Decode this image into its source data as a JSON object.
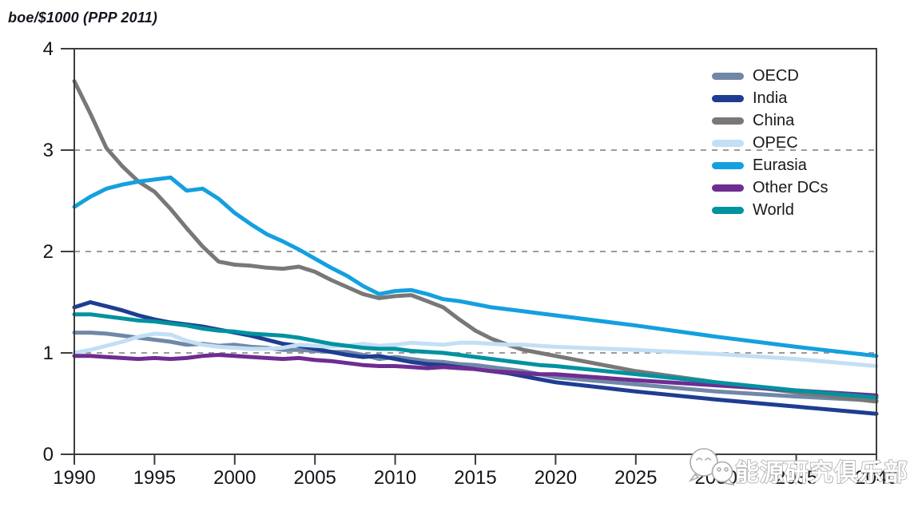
{
  "title": {
    "text": "boe/$1000 (PPP 2011)"
  },
  "chart_data": {
    "type": "line",
    "title": "boe/$1000 (PPP 2011)",
    "ylabel": "boe/$1000 (PPP 2011)",
    "xlim": [
      1990,
      2040
    ],
    "ylim": [
      0,
      4
    ],
    "x_ticks": [
      1990,
      1995,
      2000,
      2005,
      2010,
      2015,
      2020,
      2025,
      2030,
      2035,
      2040
    ],
    "y_ticks": [
      0,
      1,
      2,
      3,
      4
    ],
    "dashed_gridlines_y": [
      1,
      2,
      3
    ],
    "grid": "horizontal dashed at 1, 2, 3; solid plot frame",
    "legend_position": "top-right inside plot area",
    "x": [
      1990,
      1991,
      1992,
      1993,
      1994,
      1995,
      1996,
      1997,
      1998,
      1999,
      2000,
      2001,
      2002,
      2003,
      2004,
      2005,
      2006,
      2007,
      2008,
      2009,
      2010,
      2011,
      2012,
      2013,
      2014,
      2015,
      2016,
      2017,
      2018,
      2019,
      2020,
      2025,
      2030,
      2035,
      2040
    ],
    "series": [
      {
        "name": "OECD",
        "color": "#7088A8",
        "values": [
          1.2,
          1.2,
          1.19,
          1.17,
          1.15,
          1.13,
          1.11,
          1.08,
          1.09,
          1.07,
          1.08,
          1.06,
          1.05,
          1.03,
          1.03,
          1.02,
          1.01,
          1.01,
          0.98,
          0.94,
          0.96,
          0.94,
          0.92,
          0.91,
          0.89,
          0.88,
          0.86,
          0.84,
          0.82,
          0.79,
          0.76,
          0.69,
          0.62,
          0.57,
          0.53
        ]
      },
      {
        "name": "India",
        "color": "#1E3D92",
        "values": [
          1.45,
          1.5,
          1.46,
          1.42,
          1.37,
          1.33,
          1.3,
          1.28,
          1.26,
          1.23,
          1.2,
          1.17,
          1.13,
          1.09,
          1.07,
          1.04,
          1.01,
          0.98,
          0.96,
          0.97,
          0.94,
          0.91,
          0.89,
          0.88,
          0.86,
          0.84,
          0.82,
          0.8,
          0.77,
          0.74,
          0.71,
          0.62,
          0.54,
          0.47,
          0.4
        ]
      },
      {
        "name": "China",
        "color": "#787878",
        "values": [
          3.68,
          3.36,
          3.02,
          2.84,
          2.69,
          2.59,
          2.42,
          2.23,
          2.05,
          1.9,
          1.87,
          1.86,
          1.84,
          1.83,
          1.85,
          1.8,
          1.72,
          1.65,
          1.58,
          1.54,
          1.56,
          1.57,
          1.51,
          1.45,
          1.33,
          1.22,
          1.14,
          1.08,
          1.03,
          1.0,
          0.97,
          0.82,
          0.71,
          0.61,
          0.52
        ]
      },
      {
        "name": "OPEC",
        "color": "#C2DFF5",
        "values": [
          1.0,
          1.03,
          1.07,
          1.11,
          1.16,
          1.19,
          1.18,
          1.12,
          1.08,
          1.06,
          1.05,
          1.04,
          1.04,
          1.05,
          1.08,
          1.07,
          1.06,
          1.07,
          1.09,
          1.07,
          1.08,
          1.1,
          1.09,
          1.08,
          1.1,
          1.1,
          1.09,
          1.08,
          1.08,
          1.07,
          1.06,
          1.03,
          0.99,
          0.94,
          0.87
        ]
      },
      {
        "name": "Eurasia",
        "color": "#14A0E0",
        "values": [
          2.44,
          2.54,
          2.62,
          2.66,
          2.69,
          2.71,
          2.73,
          2.6,
          2.62,
          2.52,
          2.38,
          2.27,
          2.17,
          2.1,
          2.02,
          1.93,
          1.84,
          1.76,
          1.66,
          1.58,
          1.61,
          1.62,
          1.58,
          1.53,
          1.51,
          1.48,
          1.45,
          1.43,
          1.41,
          1.39,
          1.37,
          1.27,
          1.16,
          1.06,
          0.97
        ]
      },
      {
        "name": "Other DCs",
        "color": "#6F2C91",
        "values": [
          0.97,
          0.97,
          0.96,
          0.95,
          0.94,
          0.95,
          0.94,
          0.95,
          0.97,
          0.98,
          0.97,
          0.96,
          0.95,
          0.94,
          0.95,
          0.93,
          0.92,
          0.9,
          0.88,
          0.87,
          0.87,
          0.86,
          0.85,
          0.86,
          0.85,
          0.84,
          0.82,
          0.81,
          0.8,
          0.79,
          0.79,
          0.73,
          0.68,
          0.63,
          0.58
        ]
      },
      {
        "name": "World",
        "color": "#00929F",
        "values": [
          1.38,
          1.38,
          1.36,
          1.34,
          1.32,
          1.31,
          1.29,
          1.27,
          1.24,
          1.22,
          1.21,
          1.19,
          1.18,
          1.17,
          1.15,
          1.12,
          1.09,
          1.07,
          1.05,
          1.04,
          1.04,
          1.02,
          1.01,
          1.0,
          0.98,
          0.96,
          0.94,
          0.92,
          0.9,
          0.88,
          0.87,
          0.79,
          0.71,
          0.63,
          0.56
        ]
      }
    ]
  },
  "watermark": {
    "icon": "wechat-logo-icon",
    "text": "能源研究俱乐部"
  },
  "colors": {
    "axis": "#3d3d3d",
    "gridline": "#9b9b9b",
    "tick_label": "#14141c",
    "background": "#ffffff"
  }
}
